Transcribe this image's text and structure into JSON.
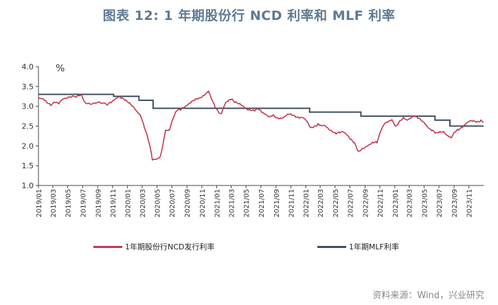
{
  "chart_data": {
    "type": "line",
    "title": "图表 12: 1 年期股份行 NCD 利率和 MLF 利率",
    "unit": "%",
    "ylim": [
      1.0,
      4.0
    ],
    "yticks": [
      "1.0",
      "1.5",
      "2.0",
      "2.5",
      "3.0",
      "3.5",
      "4.0"
    ],
    "xlim": [
      "2019-01-01",
      "2023-12-31"
    ],
    "xticks": [
      "2019/01",
      "2019/03",
      "2019/05",
      "2019/07",
      "2019/09",
      "2019/11",
      "2020/01",
      "2020/03",
      "2020/05",
      "2020/07",
      "2020/09",
      "2020/11",
      "2021/01",
      "2021/03",
      "2021/05",
      "2021/07",
      "2021/09",
      "2021/11",
      "2022/01",
      "2022/03",
      "2022/05",
      "2022/07",
      "2022/09",
      "2022/11",
      "2023/01",
      "2023/03",
      "2023/05",
      "2023/07",
      "2023/09",
      "2023/11"
    ],
    "grid": false,
    "legend_position": "bottom",
    "series": [
      {
        "name": "1年期股份行NCD发行利率",
        "color": "#c0384b",
        "points": [
          [
            "2019-01-01",
            3.22
          ],
          [
            "2019-01-20",
            3.18
          ],
          [
            "2019-02-05",
            3.1
          ],
          [
            "2019-02-20",
            3.05
          ],
          [
            "2019-03-10",
            3.12
          ],
          [
            "2019-03-25",
            3.05
          ],
          [
            "2019-04-10",
            3.15
          ],
          [
            "2019-05-01",
            3.22
          ],
          [
            "2019-05-20",
            3.26
          ],
          [
            "2019-06-10",
            3.25
          ],
          [
            "2019-06-25",
            3.28
          ],
          [
            "2019-07-10",
            3.1
          ],
          [
            "2019-08-01",
            3.08
          ],
          [
            "2019-08-20",
            3.1
          ],
          [
            "2019-09-15",
            3.07
          ],
          [
            "2019-10-10",
            3.03
          ],
          [
            "2019-10-25",
            3.1
          ],
          [
            "2019-11-10",
            3.18
          ],
          [
            "2019-11-25",
            3.22
          ],
          [
            "2019-12-10",
            3.18
          ],
          [
            "2019-12-25",
            3.15
          ],
          [
            "2020-01-10",
            3.1
          ],
          [
            "2020-01-25",
            3.0
          ],
          [
            "2020-02-10",
            2.85
          ],
          [
            "2020-02-25",
            2.75
          ],
          [
            "2020-03-10",
            2.5
          ],
          [
            "2020-03-25",
            2.2
          ],
          [
            "2020-04-05",
            1.9
          ],
          [
            "2020-04-12",
            1.62
          ],
          [
            "2020-04-25",
            1.65
          ],
          [
            "2020-05-05",
            1.68
          ],
          [
            "2020-05-15",
            1.72
          ],
          [
            "2020-05-25",
            2.0
          ],
          [
            "2020-06-05",
            2.4
          ],
          [
            "2020-06-20",
            2.42
          ],
          [
            "2020-07-05",
            2.7
          ],
          [
            "2020-07-20",
            2.88
          ],
          [
            "2020-08-05",
            2.9
          ],
          [
            "2020-08-20",
            2.97
          ],
          [
            "2020-09-05",
            3.05
          ],
          [
            "2020-09-20",
            3.1
          ],
          [
            "2020-10-05",
            3.15
          ],
          [
            "2020-10-20",
            3.2
          ],
          [
            "2020-11-05",
            3.28
          ],
          [
            "2020-11-20",
            3.35
          ],
          [
            "2020-11-28",
            3.38
          ],
          [
            "2020-12-10",
            3.2
          ],
          [
            "2020-12-25",
            3.0
          ],
          [
            "2021-01-10",
            2.85
          ],
          [
            "2021-01-20",
            2.8
          ],
          [
            "2021-02-05",
            3.05
          ],
          [
            "2021-02-20",
            3.15
          ],
          [
            "2021-03-05",
            3.18
          ],
          [
            "2021-03-20",
            3.1
          ],
          [
            "2021-04-05",
            3.05
          ],
          [
            "2021-04-20",
            3.0
          ],
          [
            "2021-05-05",
            2.95
          ],
          [
            "2021-05-20",
            2.92
          ],
          [
            "2021-06-05",
            2.88
          ],
          [
            "2021-06-20",
            2.92
          ],
          [
            "2021-07-05",
            2.85
          ],
          [
            "2021-07-20",
            2.8
          ],
          [
            "2021-08-05",
            2.72
          ],
          [
            "2021-08-20",
            2.75
          ],
          [
            "2021-09-05",
            2.7
          ],
          [
            "2021-09-20",
            2.72
          ],
          [
            "2021-10-05",
            2.75
          ],
          [
            "2021-10-20",
            2.8
          ],
          [
            "2021-11-05",
            2.78
          ],
          [
            "2021-11-20",
            2.75
          ],
          [
            "2021-12-05",
            2.72
          ],
          [
            "2021-12-20",
            2.7
          ],
          [
            "2022-01-05",
            2.6
          ],
          [
            "2022-01-20",
            2.45
          ],
          [
            "2022-02-05",
            2.5
          ],
          [
            "2022-02-20",
            2.55
          ],
          [
            "2022-03-05",
            2.5
          ],
          [
            "2022-03-20",
            2.52
          ],
          [
            "2022-04-05",
            2.45
          ],
          [
            "2022-04-20",
            2.38
          ],
          [
            "2022-05-05",
            2.3
          ],
          [
            "2022-05-20",
            2.32
          ],
          [
            "2022-06-05",
            2.35
          ],
          [
            "2022-06-20",
            2.28
          ],
          [
            "2022-07-05",
            2.15
          ],
          [
            "2022-07-20",
            2.05
          ],
          [
            "2022-08-05",
            1.85
          ],
          [
            "2022-08-20",
            1.95
          ],
          [
            "2022-09-05",
            2.0
          ],
          [
            "2022-09-20",
            2.03
          ],
          [
            "2022-10-05",
            2.08
          ],
          [
            "2022-10-20",
            2.1
          ],
          [
            "2022-11-05",
            2.4
          ],
          [
            "2022-11-20",
            2.55
          ],
          [
            "2022-12-05",
            2.58
          ],
          [
            "2022-12-20",
            2.65
          ],
          [
            "2023-01-05",
            2.5
          ],
          [
            "2023-01-20",
            2.62
          ],
          [
            "2023-02-05",
            2.7
          ],
          [
            "2023-02-20",
            2.65
          ],
          [
            "2023-03-05",
            2.72
          ],
          [
            "2023-03-20",
            2.78
          ],
          [
            "2023-04-05",
            2.7
          ],
          [
            "2023-04-20",
            2.62
          ],
          [
            "2023-05-05",
            2.55
          ],
          [
            "2023-05-20",
            2.45
          ],
          [
            "2023-06-05",
            2.38
          ],
          [
            "2023-06-20",
            2.3
          ],
          [
            "2023-07-05",
            2.35
          ],
          [
            "2023-07-20",
            2.38
          ],
          [
            "2023-08-05",
            2.28
          ],
          [
            "2023-08-20",
            2.2
          ],
          [
            "2023-09-05",
            2.35
          ],
          [
            "2023-09-20",
            2.42
          ],
          [
            "2023-10-05",
            2.48
          ],
          [
            "2023-10-20",
            2.55
          ],
          [
            "2023-11-05",
            2.6
          ],
          [
            "2023-11-20",
            2.62
          ],
          [
            "2023-12-05",
            2.62
          ],
          [
            "2023-12-20",
            2.65
          ],
          [
            "2023-12-31",
            2.6
          ]
        ]
      },
      {
        "name": "1年期MLF利率",
        "color": "#3d4f5f",
        "points": [
          [
            "2019-01-01",
            3.3
          ],
          [
            "2019-11-05",
            3.3
          ],
          [
            "2019-11-05",
            3.25
          ],
          [
            "2020-02-17",
            3.25
          ],
          [
            "2020-02-17",
            3.15
          ],
          [
            "2020-04-15",
            3.15
          ],
          [
            "2020-04-15",
            2.95
          ],
          [
            "2022-01-17",
            2.95
          ],
          [
            "2022-01-17",
            2.85
          ],
          [
            "2022-08-15",
            2.85
          ],
          [
            "2022-08-15",
            2.75
          ],
          [
            "2023-06-15",
            2.75
          ],
          [
            "2023-06-15",
            2.65
          ],
          [
            "2023-08-15",
            2.65
          ],
          [
            "2023-08-15",
            2.5
          ],
          [
            "2023-12-31",
            2.5
          ]
        ]
      }
    ],
    "source": "资料来源：Wind，兴业研究"
  }
}
